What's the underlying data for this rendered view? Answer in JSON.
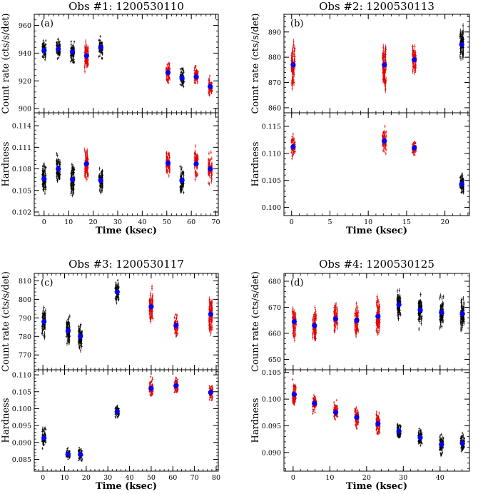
{
  "figure": {
    "xlabel": "Time (ksec)",
    "ylabel_rate": "Count rate (cts/s/det)",
    "ylabel_hard": "Hardness"
  },
  "colors": {
    "black": "#000000",
    "red": "#e00000",
    "blue": "#0000ff"
  },
  "chart_data": [
    {
      "type": "scatter",
      "title": "Obs #1: 1200530110",
      "panel_label": "(a)",
      "xlabel": "Time (ksec)",
      "xlim": [
        -4,
        71
      ],
      "xticks": [
        0,
        10,
        20,
        30,
        40,
        50,
        60,
        70
      ],
      "top": {
        "ylabel": "Count rate (cts/s/det)",
        "ylim": [
          897,
          968
        ],
        "yticks": [
          900,
          920,
          940,
          960
        ],
        "segments": [
          {
            "x": 0,
            "mean": 942,
            "spread": 8,
            "color": "black"
          },
          {
            "x": 5.8,
            "mean": 943,
            "spread": 8,
            "color": "black"
          },
          {
            "x": 11.6,
            "mean": 941,
            "spread": 9,
            "color": "black"
          },
          {
            "x": 17.3,
            "mean": 938,
            "spread": 13,
            "color": "red"
          },
          {
            "x": 23.1,
            "mean": 944,
            "spread": 8,
            "color": "black"
          },
          {
            "x": 50.5,
            "mean": 926,
            "spread": 9,
            "color": "red"
          },
          {
            "x": 56.2,
            "mean": 922,
            "spread": 8,
            "color": "black"
          },
          {
            "x": 62.0,
            "mean": 923,
            "spread": 8,
            "color": "red"
          },
          {
            "x": 67.7,
            "mean": 916,
            "spread": 8,
            "color": "red"
          }
        ]
      },
      "bottom": {
        "ylabel": "Hardness",
        "ylim": [
          0.1015,
          0.1158
        ],
        "yticks": [
          0.102,
          0.105,
          0.108,
          0.111,
          0.114
        ],
        "tick_labels": [
          "0.102",
          "0.105",
          "0.108",
          "0.111",
          "0.114"
        ],
        "segments": [
          {
            "x": 0,
            "mean": 0.1066,
            "spread": 0.0022,
            "color": "black"
          },
          {
            "x": 5.8,
            "mean": 0.108,
            "spread": 0.0022,
            "color": "black"
          },
          {
            "x": 11.6,
            "mean": 0.1065,
            "spread": 0.0024,
            "color": "black"
          },
          {
            "x": 17.3,
            "mean": 0.1087,
            "spread": 0.0028,
            "color": "red"
          },
          {
            "x": 23.1,
            "mean": 0.1064,
            "spread": 0.0022,
            "color": "black"
          },
          {
            "x": 50.5,
            "mean": 0.1088,
            "spread": 0.0022,
            "color": "red"
          },
          {
            "x": 56.2,
            "mean": 0.1064,
            "spread": 0.0022,
            "color": "black"
          },
          {
            "x": 62.0,
            "mean": 0.1087,
            "spread": 0.0022,
            "color": "red"
          },
          {
            "x": 67.7,
            "mean": 0.108,
            "spread": 0.0022,
            "color": "red"
          }
        ]
      }
    },
    {
      "type": "scatter",
      "title": "Obs #2: 1200530113",
      "panel_label": "(b)",
      "xlabel": "Time (ksec)",
      "xlim": [
        -1,
        23.2
      ],
      "xticks": [
        0,
        5,
        10,
        15,
        20
      ],
      "top": {
        "ylabel": "Count rate (cts/s/det)",
        "ylim": [
          858,
          897
        ],
        "yticks": [
          860,
          870,
          880,
          890
        ],
        "segments": [
          {
            "x": 0.2,
            "mean": 877,
            "spread": 10,
            "color": "red"
          },
          {
            "x": 12.1,
            "mean": 877,
            "spread": 11,
            "color": "red"
          },
          {
            "x": 16.0,
            "mean": 879,
            "spread": 7,
            "color": "red"
          },
          {
            "x": 22.2,
            "mean": 885,
            "spread": 8,
            "color": "black"
          }
        ]
      },
      "bottom": {
        "ylabel": "Hardness",
        "ylim": [
          0.0985,
          0.1175
        ],
        "yticks": [
          0.1,
          0.105,
          0.11,
          0.115
        ],
        "tick_labels": [
          "0.100",
          "0.105",
          "0.110",
          "0.115"
        ],
        "segments": [
          {
            "x": 0.2,
            "mean": 0.1112,
            "spread": 0.0022,
            "color": "red"
          },
          {
            "x": 12.1,
            "mean": 0.1123,
            "spread": 0.0025,
            "color": "red"
          },
          {
            "x": 16.0,
            "mean": 0.111,
            "spread": 0.0015,
            "color": "red"
          },
          {
            "x": 22.2,
            "mean": 0.1043,
            "spread": 0.0025,
            "color": "black"
          }
        ]
      }
    },
    {
      "type": "scatter",
      "title": "Obs #3: 1200530117",
      "panel_label": "(c)",
      "xlabel": "Time (ksec)",
      "xlim": [
        -4,
        81
      ],
      "xticks": [
        0,
        10,
        20,
        30,
        40,
        50,
        60,
        70,
        80
      ],
      "top": {
        "ylabel": "Count rate (cts/s/det)",
        "ylim": [
          762,
          814
        ],
        "yticks": [
          770,
          780,
          790,
          800,
          810
        ],
        "segments": [
          {
            "x": 0.5,
            "mean": 788,
            "spread": 9,
            "color": "black"
          },
          {
            "x": 11.6,
            "mean": 783,
            "spread": 9,
            "color": "black"
          },
          {
            "x": 17.3,
            "mean": 780,
            "spread": 9,
            "color": "black"
          },
          {
            "x": 34.3,
            "mean": 804,
            "spread": 6,
            "color": "black"
          },
          {
            "x": 50.0,
            "mean": 796,
            "spread": 10,
            "color": "red"
          },
          {
            "x": 61.5,
            "mean": 786,
            "spread": 7,
            "color": "red"
          },
          {
            "x": 77.5,
            "mean": 792,
            "spread": 14,
            "color": "red"
          }
        ]
      },
      "bottom": {
        "ylabel": "Hardness",
        "ylim": [
          0.0815,
          0.1115
        ],
        "yticks": [
          0.085,
          0.09,
          0.095,
          0.1,
          0.105,
          0.11
        ],
        "tick_labels": [
          "0.085",
          "0.090",
          "0.095",
          "0.100",
          "0.105",
          "0.110"
        ],
        "segments": [
          {
            "x": 0.5,
            "mean": 0.0913,
            "spread": 0.0035,
            "color": "black"
          },
          {
            "x": 11.6,
            "mean": 0.0865,
            "spread": 0.002,
            "color": "black"
          },
          {
            "x": 17.3,
            "mean": 0.0864,
            "spread": 0.0022,
            "color": "black"
          },
          {
            "x": 34.3,
            "mean": 0.0991,
            "spread": 0.0022,
            "color": "black"
          },
          {
            "x": 50.0,
            "mean": 0.106,
            "spread": 0.003,
            "color": "red"
          },
          {
            "x": 61.5,
            "mean": 0.1068,
            "spread": 0.0028,
            "color": "red"
          },
          {
            "x": 77.5,
            "mean": 0.1048,
            "spread": 0.0025,
            "color": "red"
          }
        ]
      }
    },
    {
      "type": "scatter",
      "title": "Obs #4: 1200530125",
      "panel_label": "(d)",
      "xlabel": "Time (ksec)",
      "xlim": [
        -2.5,
        48
      ],
      "xticks": [
        0,
        10,
        20,
        30,
        40
      ],
      "top": {
        "ylabel": "Count rate (cts/s/det)",
        "ylim": [
          646,
          683
        ],
        "yticks": [
          650,
          660,
          670,
          680
        ],
        "segments": [
          {
            "x": 0.3,
            "mean": 664.5,
            "spread": 7,
            "color": "red"
          },
          {
            "x": 5.8,
            "mean": 663,
            "spread": 8,
            "color": "red"
          },
          {
            "x": 11.6,
            "mean": 665.5,
            "spread": 7,
            "color": "red"
          },
          {
            "x": 17.3,
            "mean": 665,
            "spread": 7,
            "color": "red"
          },
          {
            "x": 23.1,
            "mean": 666.5,
            "spread": 8,
            "color": "red"
          },
          {
            "x": 28.8,
            "mean": 671,
            "spread": 7,
            "color": "black"
          },
          {
            "x": 34.6,
            "mean": 669,
            "spread": 7,
            "color": "black"
          },
          {
            "x": 40.4,
            "mean": 668,
            "spread": 7,
            "color": "black"
          },
          {
            "x": 46.1,
            "mean": 667.5,
            "spread": 7,
            "color": "black"
          }
        ]
      },
      "bottom": {
        "ylabel": "Hardness",
        "ylim": [
          0.0865,
          0.1055
        ],
        "yticks": [
          0.09,
          0.095,
          0.1,
          0.105
        ],
        "tick_labels": [
          "0.090",
          "0.095",
          "0.100",
          "0.105"
        ],
        "segments": [
          {
            "x": 0.3,
            "mean": 0.1009,
            "spread": 0.0025,
            "color": "red"
          },
          {
            "x": 5.8,
            "mean": 0.0992,
            "spread": 0.002,
            "color": "red"
          },
          {
            "x": 11.6,
            "mean": 0.0975,
            "spread": 0.002,
            "color": "red"
          },
          {
            "x": 17.3,
            "mean": 0.0966,
            "spread": 0.0022,
            "color": "red"
          },
          {
            "x": 23.1,
            "mean": 0.0954,
            "spread": 0.0025,
            "color": "red"
          },
          {
            "x": 28.8,
            "mean": 0.094,
            "spread": 0.0018,
            "color": "black"
          },
          {
            "x": 34.6,
            "mean": 0.0928,
            "spread": 0.002,
            "color": "black"
          },
          {
            "x": 40.4,
            "mean": 0.0915,
            "spread": 0.0022,
            "color": "black"
          },
          {
            "x": 46.1,
            "mean": 0.0917,
            "spread": 0.0022,
            "color": "black"
          }
        ]
      }
    }
  ]
}
